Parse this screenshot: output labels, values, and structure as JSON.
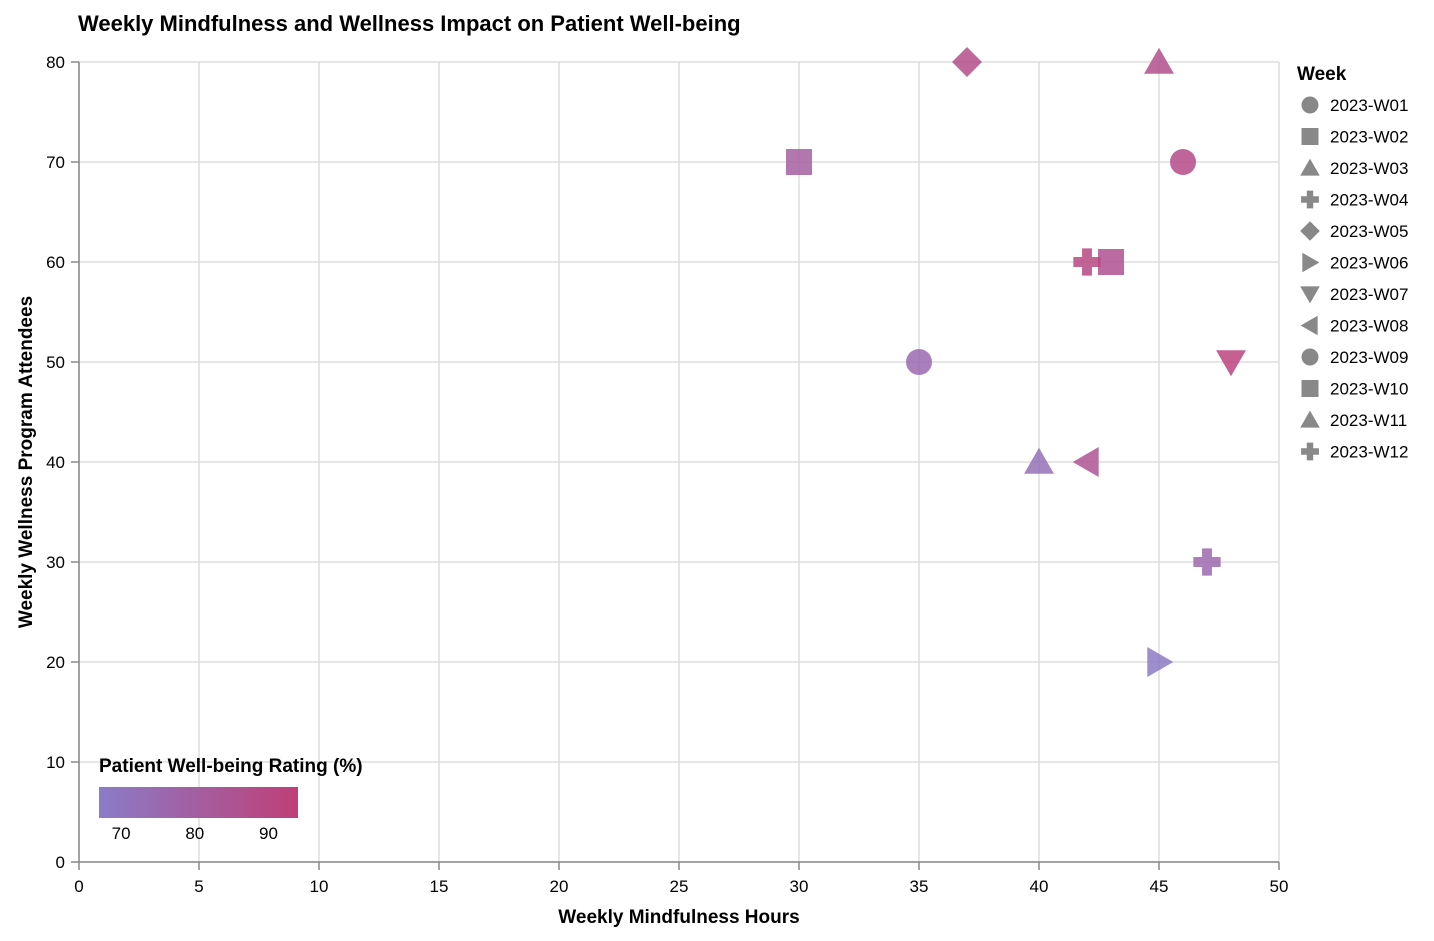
{
  "chart_data": {
    "type": "scatter",
    "title": "Weekly Mindfulness and Wellness Impact on Patient Well-being",
    "xlabel": "Weekly Mindfulness Hours",
    "ylabel": "Weekly Wellness Program Attendees",
    "xlim": [
      0,
      50
    ],
    "ylim": [
      0,
      80
    ],
    "x_ticks": [
      0,
      5,
      10,
      15,
      20,
      25,
      30,
      35,
      40,
      45,
      50
    ],
    "y_ticks": [
      0,
      10,
      20,
      30,
      40,
      50,
      60,
      70,
      80
    ],
    "grid": true,
    "color_legend": {
      "title": "Patient Well-being Rating (%)",
      "ticks": [
        70,
        80,
        90
      ],
      "domain": [
        67,
        94
      ],
      "colors": [
        "#8a7cc8",
        "#bf3f78"
      ],
      "placement": "bottom-left"
    },
    "shape_legend": {
      "title": "Week",
      "placement": "top-right",
      "entries": [
        {
          "label": "2023-W01",
          "shape": "circle"
        },
        {
          "label": "2023-W02",
          "shape": "square"
        },
        {
          "label": "2023-W03",
          "shape": "triangle-up"
        },
        {
          "label": "2023-W04",
          "shape": "cross"
        },
        {
          "label": "2023-W05",
          "shape": "diamond"
        },
        {
          "label": "2023-W06",
          "shape": "triangle-right"
        },
        {
          "label": "2023-W07",
          "shape": "triangle-down"
        },
        {
          "label": "2023-W08",
          "shape": "triangle-left"
        },
        {
          "label": "2023-W09",
          "shape": "circle"
        },
        {
          "label": "2023-W10",
          "shape": "square"
        },
        {
          "label": "2023-W11",
          "shape": "triangle-up"
        },
        {
          "label": "2023-W12",
          "shape": "cross"
        }
      ]
    },
    "points": [
      {
        "week": "2023-W01",
        "x": 35,
        "y": 50,
        "rating": 75
      },
      {
        "week": "2023-W02",
        "x": 30,
        "y": 70,
        "rating": 80
      },
      {
        "week": "2023-W03",
        "x": 40,
        "y": 40,
        "rating": 72
      },
      {
        "week": "2023-W04",
        "x": 47,
        "y": 30,
        "rating": 76
      },
      {
        "week": "2023-W05",
        "x": 37,
        "y": 80,
        "rating": 88
      },
      {
        "week": "2023-W06",
        "x": 45,
        "y": 20,
        "rating": 68
      },
      {
        "week": "2023-W07",
        "x": 48,
        "y": 50,
        "rating": 92
      },
      {
        "week": "2023-W08",
        "x": 42,
        "y": 40,
        "rating": 85
      },
      {
        "week": "2023-W09",
        "x": 46,
        "y": 70,
        "rating": 89
      },
      {
        "week": "2023-W10",
        "x": 43,
        "y": 60,
        "rating": 86
      },
      {
        "week": "2023-W11",
        "x": 45,
        "y": 80,
        "rating": 87
      },
      {
        "week": "2023-W12",
        "x": 42,
        "y": 60,
        "rating": 90
      }
    ]
  }
}
